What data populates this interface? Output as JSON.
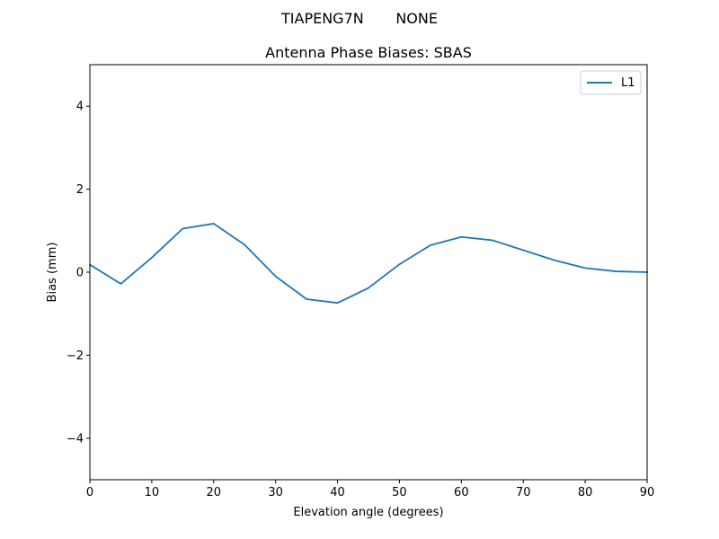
{
  "figure": {
    "suptitle": "TIAPENG7N       NONE"
  },
  "chart_data": {
    "type": "line",
    "title": "Antenna Phase Biases: SBAS",
    "xlabel": "Elevation angle (degrees)",
    "ylabel": "Bias (mm)",
    "xlim": [
      0,
      90
    ],
    "ylim": [
      -5,
      5
    ],
    "xticks": [
      0,
      10,
      20,
      30,
      40,
      50,
      60,
      70,
      80,
      90
    ],
    "yticks": [
      -4,
      -2,
      0,
      2,
      4
    ],
    "xtick_labels": [
      "0",
      "10",
      "20",
      "30",
      "40",
      "50",
      "60",
      "70",
      "80",
      "90"
    ],
    "ytick_labels": [
      "−4",
      "−2",
      "0",
      "2",
      "4"
    ],
    "grid": false,
    "legend": "top-right",
    "series": [
      {
        "name": "L1",
        "color": "#1f77b4",
        "x": [
          0,
          5,
          10,
          15,
          20,
          25,
          30,
          35,
          40,
          45,
          50,
          55,
          60,
          65,
          70,
          75,
          80,
          85,
          90
        ],
        "y": [
          0.18,
          -0.28,
          0.35,
          1.05,
          1.17,
          0.66,
          -0.1,
          -0.65,
          -0.74,
          -0.38,
          0.19,
          0.65,
          0.85,
          0.77,
          0.53,
          0.29,
          0.1,
          0.02,
          0.0
        ]
      }
    ]
  }
}
